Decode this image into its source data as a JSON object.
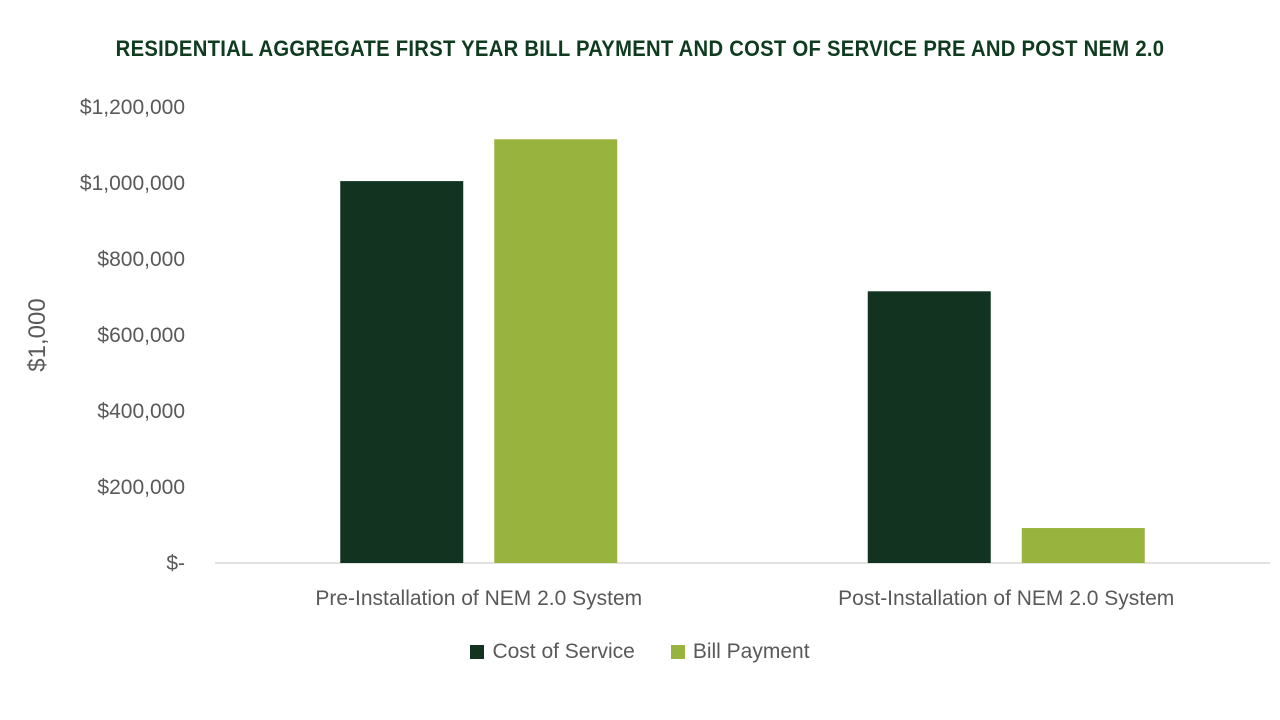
{
  "chart_data": {
    "type": "bar",
    "title": "RESIDENTIAL AGGREGATE FIRST YEAR BILL PAYMENT AND COST OF SERVICE PRE AND POST NEM 2.0",
    "ylabel": "$1,000",
    "xlabel": "",
    "categories": [
      "Pre-Installation of NEM 2.0 System",
      "Post-Installation of NEM 2.0 System"
    ],
    "series": [
      {
        "name": "Cost of Service",
        "color": "#113320",
        "values": [
          1005000,
          715000
        ]
      },
      {
        "name": "Bill Payment",
        "color": "#99b33f",
        "values": [
          1115000,
          92000
        ]
      }
    ],
    "ylim": [
      0,
      1200000
    ],
    "yticks": [
      0,
      200000,
      400000,
      600000,
      800000,
      1000000,
      1200000
    ],
    "ytick_labels": [
      "$-",
      "$200,000",
      "$400,000",
      "$600,000",
      "$800,000",
      "$1,000,000",
      "$1,200,000"
    ],
    "grid": false,
    "legend_position": "bottom"
  }
}
